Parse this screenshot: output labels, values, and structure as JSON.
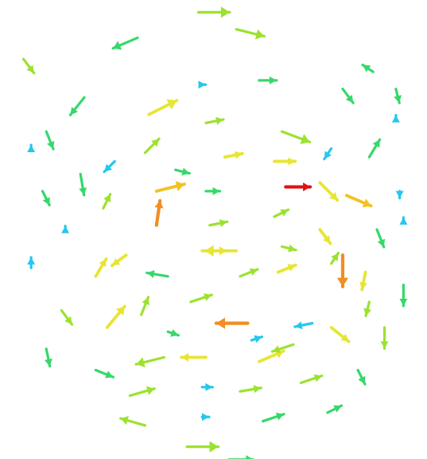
{
  "chart_data": {
    "type": "quiver",
    "title": "",
    "xlabel": "",
    "ylabel": "",
    "xlim": [
      -5.2,
      5.2
    ],
    "ylim": [
      -5.2,
      5.2
    ],
    "grid": false,
    "legend": "none",
    "colormap": [
      "#27c6ee",
      "#36d86a",
      "#9be22f",
      "#e7e533",
      "#f2c21f",
      "#f28e22",
      "#e11212"
    ],
    "vectors": [
      {
        "x": -0.4,
        "y": 5.1,
        "u": 0.9,
        "v": 0.0,
        "mag": 1.7
      },
      {
        "x": 0.6,
        "y": 4.7,
        "u": 0.8,
        "v": -0.2,
        "mag": 1.5
      },
      {
        "x": -2.0,
        "y": 4.5,
        "u": -0.7,
        "v": -0.3,
        "mag": 1.3
      },
      {
        "x": -0.3,
        "y": 3.4,
        "u": 0.1,
        "v": 0.0,
        "mag": 0.2
      },
      {
        "x": 1.2,
        "y": 3.5,
        "u": 0.5,
        "v": 0.0,
        "mag": 0.8
      },
      {
        "x": 3.4,
        "y": 3.3,
        "u": 0.3,
        "v": -0.4,
        "mag": 1.0
      },
      {
        "x": 4.8,
        "y": 3.3,
        "u": 0.1,
        "v": -0.4,
        "mag": 0.8
      },
      {
        "x": -3.4,
        "y": 3.1,
        "u": -0.4,
        "v": -0.5,
        "mag": 1.1
      },
      {
        "x": -1.7,
        "y": 2.7,
        "u": 0.8,
        "v": 0.4,
        "mag": 2.4
      },
      {
        "x": -0.2,
        "y": 2.5,
        "u": 0.5,
        "v": 0.1,
        "mag": 1.5
      },
      {
        "x": 1.8,
        "y": 2.3,
        "u": 0.8,
        "v": -0.3,
        "mag": 2.0
      },
      {
        "x": 3.1,
        "y": 1.9,
        "u": -0.2,
        "v": -0.3,
        "mag": 0.3
      },
      {
        "x": -4.4,
        "y": 2.3,
        "u": 0.2,
        "v": -0.5,
        "mag": 1.1
      },
      {
        "x": 4.1,
        "y": 1.7,
        "u": 0.3,
        "v": 0.5,
        "mag": 1.1
      },
      {
        "x": -2.6,
        "y": 1.6,
        "u": -0.3,
        "v": -0.3,
        "mag": 0.6
      },
      {
        "x": -1.8,
        "y": 1.8,
        "u": 0.4,
        "v": 0.4,
        "mag": 2.0
      },
      {
        "x": -1.0,
        "y": 1.4,
        "u": 0.4,
        "v": -0.1,
        "mag": 0.8
      },
      {
        "x": 0.3,
        "y": 1.7,
        "u": 0.5,
        "v": 0.1,
        "mag": 2.4
      },
      {
        "x": 1.6,
        "y": 1.6,
        "u": 0.6,
        "v": 0.0,
        "mag": 2.6
      },
      {
        "x": 2.8,
        "y": 1.1,
        "u": 0.5,
        "v": -0.5,
        "mag": 2.2
      },
      {
        "x": -3.5,
        "y": 1.3,
        "u": 0.1,
        "v": -0.6,
        "mag": 1.3
      },
      {
        "x": -1.5,
        "y": 0.9,
        "u": 0.8,
        "v": 0.2,
        "mag": 3.1
      },
      {
        "x": -0.2,
        "y": 0.9,
        "u": 0.4,
        "v": 0.0,
        "mag": 1.2
      },
      {
        "x": 1.9,
        "y": 1.0,
        "u": 0.7,
        "v": 0.0,
        "mag": 4.1
      },
      {
        "x": 3.5,
        "y": 0.8,
        "u": 0.7,
        "v": -0.3,
        "mag": 3.2
      },
      {
        "x": 4.9,
        "y": 0.9,
        "u": 0.0,
        "v": -0.2,
        "mag": 0.3
      },
      {
        "x": -2.9,
        "y": 0.5,
        "u": 0.2,
        "v": 0.4,
        "mag": 2.0
      },
      {
        "x": -1.5,
        "y": 0.1,
        "u": 0.1,
        "v": 0.7,
        "mag": 3.8
      },
      {
        "x": -0.1,
        "y": 0.1,
        "u": 0.5,
        "v": 0.1,
        "mag": 1.6
      },
      {
        "x": 1.6,
        "y": 0.3,
        "u": 0.4,
        "v": 0.2,
        "mag": 1.8
      },
      {
        "x": 2.8,
        "y": 0.0,
        "u": 0.3,
        "v": -0.4,
        "mag": 2.5
      },
      {
        "x": 4.3,
        "y": 0.0,
        "u": 0.2,
        "v": -0.5,
        "mag": 1.3
      },
      {
        "x": -4.5,
        "y": 0.9,
        "u": 0.2,
        "v": -0.4,
        "mag": 1.2
      },
      {
        "x": -2.3,
        "y": -0.6,
        "u": -0.4,
        "v": -0.3,
        "mag": 2.4
      },
      {
        "x": -0.3,
        "y": -0.5,
        "u": 0.7,
        "v": 0.0,
        "mag": 2.4
      },
      {
        "x": 0.6,
        "y": -0.5,
        "u": -0.9,
        "v": 0.0,
        "mag": 2.2
      },
      {
        "x": 1.8,
        "y": -0.4,
        "u": 0.4,
        "v": -0.1,
        "mag": 1.4
      },
      {
        "x": 3.1,
        "y": -0.8,
        "u": 0.2,
        "v": 0.3,
        "mag": 2.0
      },
      {
        "x": 3.4,
        "y": -0.6,
        "u": 0.0,
        "v": -0.9,
        "mag": 3.8
      },
      {
        "x": -4.8,
        "y": -0.9,
        "u": 0.0,
        "v": 0.3,
        "mag": 0.4
      },
      {
        "x": -3.1,
        "y": -1.1,
        "u": 0.3,
        "v": 0.5,
        "mag": 2.2
      },
      {
        "x": -1.2,
        "y": -1.1,
        "u": -0.6,
        "v": 0.1,
        "mag": 1.3
      },
      {
        "x": 0.7,
        "y": -1.1,
        "u": 0.5,
        "v": 0.2,
        "mag": 1.7
      },
      {
        "x": 1.7,
        "y": -1.0,
        "u": 0.5,
        "v": 0.2,
        "mag": 2.3
      },
      {
        "x": 4.0,
        "y": -1.0,
        "u": -0.1,
        "v": -0.5,
        "mag": 2.1
      },
      {
        "x": 5.0,
        "y": -1.3,
        "u": 0.0,
        "v": -0.6,
        "mag": 1.0
      },
      {
        "x": -1.9,
        "y": -2.0,
        "u": 0.2,
        "v": 0.5,
        "mag": 1.4
      },
      {
        "x": -0.6,
        "y": -1.7,
        "u": 0.6,
        "v": 0.2,
        "mag": 1.8
      },
      {
        "x": 0.9,
        "y": -2.2,
        "u": -0.9,
        "v": 0.0,
        "mag": 3.9
      },
      {
        "x": 2.6,
        "y": -2.2,
        "u": -0.5,
        "v": -0.1,
        "mag": 0.6
      },
      {
        "x": 3.1,
        "y": -2.3,
        "u": 0.5,
        "v": -0.4,
        "mag": 2.4
      },
      {
        "x": 4.1,
        "y": -1.7,
        "u": -0.1,
        "v": -0.4,
        "mag": 1.4
      },
      {
        "x": -4.0,
        "y": -1.9,
        "u": 0.3,
        "v": -0.4,
        "mag": 1.5
      },
      {
        "x": -2.8,
        "y": -2.3,
        "u": 0.5,
        "v": 0.6,
        "mag": 2.4
      },
      {
        "x": -1.2,
        "y": -2.4,
        "u": 0.3,
        "v": -0.1,
        "mag": 0.8
      },
      {
        "x": 1.2,
        "y": -3.1,
        "u": 0.7,
        "v": 0.3,
        "mag": 2.1
      },
      {
        "x": 2.3,
        "y": -3.6,
        "u": 0.6,
        "v": 0.2,
        "mag": 1.9
      },
      {
        "x": 4.5,
        "y": -2.3,
        "u": 0.0,
        "v": -0.6,
        "mag": 1.4
      },
      {
        "x": -4.4,
        "y": -2.8,
        "u": 0.1,
        "v": -0.5,
        "mag": 1.2
      },
      {
        "x": -3.1,
        "y": -3.3,
        "u": 0.5,
        "v": -0.2,
        "mag": 1.3
      },
      {
        "x": -1.3,
        "y": -3.0,
        "u": -0.8,
        "v": -0.2,
        "mag": 1.8
      },
      {
        "x": -0.2,
        "y": -3.0,
        "u": -0.7,
        "v": 0.0,
        "mag": 2.7
      },
      {
        "x": 1.0,
        "y": -2.6,
        "u": 0.3,
        "v": 0.1,
        "mag": 0.2
      },
      {
        "x": 2.1,
        "y": -2.7,
        "u": -0.6,
        "v": -0.2,
        "mag": 1.6
      },
      {
        "x": 3.8,
        "y": -3.3,
        "u": 0.2,
        "v": -0.4,
        "mag": 1.1
      },
      {
        "x": -2.2,
        "y": -3.9,
        "u": 0.7,
        "v": 0.2,
        "mag": 1.4
      },
      {
        "x": -0.3,
        "y": -3.7,
        "u": 0.3,
        "v": 0.0,
        "mag": 0.3
      },
      {
        "x": 0.7,
        "y": -3.8,
        "u": 0.6,
        "v": 0.1,
        "mag": 1.4
      },
      {
        "x": 3.0,
        "y": -4.3,
        "u": 0.4,
        "v": 0.2,
        "mag": 1.3
      },
      {
        "x": -1.8,
        "y": -4.6,
        "u": -0.7,
        "v": 0.2,
        "mag": 1.4
      },
      {
        "x": -0.3,
        "y": -4.4,
        "u": 0.2,
        "v": 0.0,
        "mag": 0.2
      },
      {
        "x": 1.3,
        "y": -4.5,
        "u": 0.6,
        "v": 0.2,
        "mag": 1.3
      },
      {
        "x": -0.7,
        "y": -5.1,
        "u": 0.9,
        "v": 0.0,
        "mag": 1.6
      },
      {
        "x": 0.4,
        "y": -5.4,
        "u": 0.7,
        "v": 0.0,
        "mag": 1.2
      },
      {
        "x": 4.8,
        "y": 2.6,
        "u": 0.0,
        "v": 0.1,
        "mag": 0.2
      },
      {
        "x": -4.8,
        "y": 1.9,
        "u": 0.0,
        "v": 0.1,
        "mag": 0.2
      },
      {
        "x": -3.9,
        "y": 0.0,
        "u": 0.0,
        "v": 0.1,
        "mag": 0.2
      },
      {
        "x": 5.0,
        "y": 0.2,
        "u": 0.0,
        "v": 0.1,
        "mag": 0.2
      },
      {
        "x": 4.2,
        "y": 3.7,
        "u": -0.3,
        "v": 0.2,
        "mag": 1.2
      },
      {
        "x": -5.0,
        "y": 4.0,
        "u": 0.3,
        "v": -0.4,
        "mag": 1.6
      }
    ]
  }
}
